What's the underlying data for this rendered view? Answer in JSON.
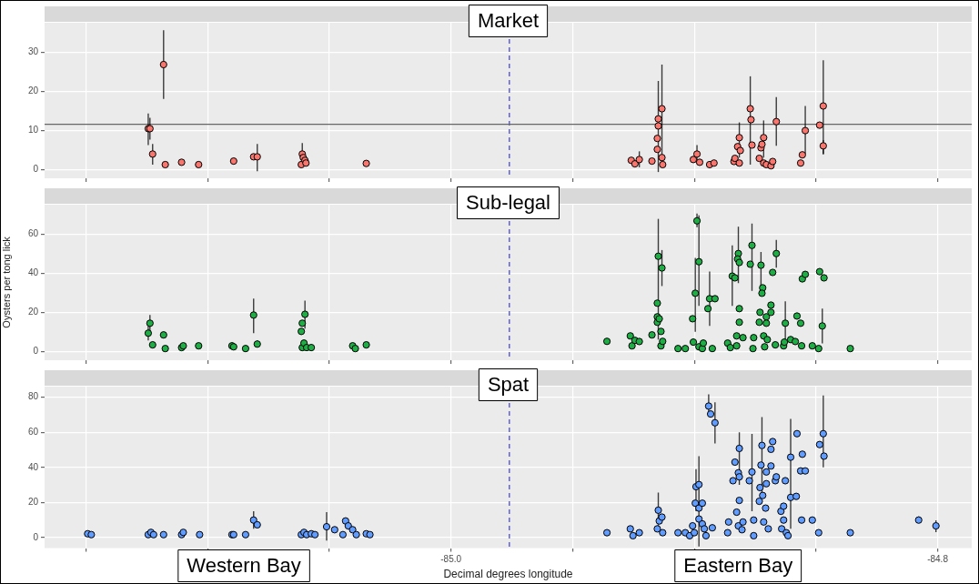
{
  "chart_data": [
    {
      "type": "scatter",
      "title": "Market",
      "color": "#f8766d",
      "marker": "circle",
      "grid": true,
      "legend": false,
      "tick_labels": "y",
      "x": [
        -85.1244,
        -85.1237,
        -85.1226,
        -85.1181,
        -85.1174,
        -85.1107,
        -85.1037,
        -85.0893,
        -85.0811,
        -85.0796,
        -85.0615,
        -85.0611,
        -85.0607,
        -85.06,
        -85.0596,
        -85.0348,
        -84.9259,
        -84.9244,
        -84.9226,
        -84.9174,
        -84.9152,
        -84.9152,
        -84.9148,
        -84.9148,
        -84.9133,
        -84.9133,
        -84.913,
        -84.9004,
        -84.8989,
        -84.8978,
        -84.8937,
        -84.8919,
        -84.8837,
        -84.8833,
        -84.8822,
        -84.8815,
        -84.8815,
        -84.8811,
        -84.877,
        -84.8767,
        -84.8763,
        -84.8733,
        -84.8726,
        -84.8722,
        -84.8715,
        -84.8715,
        -84.8704,
        -84.8685,
        -84.8678,
        -84.8663,
        -84.8563,
        -84.8556,
        -84.8544,
        -84.8485,
        -84.847,
        -84.847
      ],
      "values": [
        10.4,
        10.4,
        3.9,
        26.8,
        1.2,
        1.8,
        1.2,
        2.1,
        3.2,
        3.2,
        1.2,
        3.9,
        3,
        2.3,
        1.6,
        1.5,
        2.3,
        1.4,
        2.5,
        2.1,
        7.9,
        5.1,
        12.9,
        11.1,
        15.5,
        3,
        1.2,
        2.5,
        3.9,
        1.8,
        1.2,
        1.6,
        2,
        2.8,
        5.8,
        8.1,
        1.6,
        4.8,
        15.5,
        12.7,
        6.2,
        2.8,
        5.5,
        6.4,
        8.1,
        1.6,
        1.2,
        0.9,
        2,
        12.2,
        1.6,
        3.7,
        9.9,
        11.3,
        16.2,
        6
      ],
      "errors": [
        [
          6.2,
          14.3
        ],
        [
          7.6,
          13.2
        ],
        [
          1.2,
          6.5
        ],
        [
          18,
          35.6
        ],
        null,
        null,
        null,
        null,
        null,
        [
          -0.5,
          6.5
        ],
        null,
        [
          2,
          6.7
        ],
        null,
        null,
        null,
        null,
        null,
        null,
        [
          0.5,
          4.6
        ],
        null,
        null,
        null,
        [
          -0.7,
          22.6
        ],
        null,
        [
          0.7,
          26.8
        ],
        null,
        null,
        null,
        [
          1.5,
          6.2
        ],
        null,
        null,
        null,
        null,
        null,
        null,
        [
          3,
          12
        ],
        null,
        null,
        [
          1.2,
          23.8
        ],
        null,
        null,
        null,
        null,
        null,
        [
          3,
          12.5
        ],
        null,
        null,
        null,
        null,
        [
          6,
          18.5
        ],
        null,
        null,
        [
          4,
          16.2
        ],
        null,
        [
          3.9,
          27.9
        ],
        [
          3.8,
          7.5
        ]
      ],
      "xlim": [
        -85.167,
        -84.786
      ],
      "xticks": [
        {
          "value": -85.15,
          "label": null
        },
        {
          "value": -85.1,
          "label": null
        },
        {
          "value": -85.05,
          "label": null
        },
        {
          "value": -85,
          "label": null
        },
        {
          "value": -84.95,
          "label": null
        },
        {
          "value": -84.9,
          "label": null
        },
        {
          "value": -84.85,
          "label": null
        },
        {
          "value": -84.8,
          "label": null
        }
      ],
      "ylim": [
        -2.3,
        37.5
      ],
      "yticks": [
        0,
        10,
        20,
        30
      ],
      "ref_lines": [
        {
          "axis": "x",
          "value": -84.976,
          "color": "#4b4bd0",
          "line_style": "dashed"
        },
        {
          "axis": "y",
          "value": 11.5,
          "color": "#666666",
          "line_style": "solid"
        }
      ]
    },
    {
      "type": "scatter",
      "title": "Sub-legal",
      "ylabel": "Oysters per tong lick",
      "color": "#1fae45",
      "marker": "circle",
      "grid": true,
      "legend": false,
      "tick_labels": "y",
      "x": [
        -85.1244,
        -85.1237,
        -85.1226,
        -85.1181,
        -85.1174,
        -85.1107,
        -85.11,
        -85.1037,
        -85.09,
        -85.0893,
        -85.0844,
        -85.0811,
        -85.0796,
        -85.0615,
        -85.0611,
        -85.0611,
        -85.0604,
        -85.06,
        -85.0593,
        -85.0574,
        -85.0404,
        -85.0393,
        -85.0348,
        -84.9359,
        -84.9263,
        -84.9256,
        -84.9244,
        -84.9226,
        -84.9174,
        -84.9152,
        -84.9152,
        -84.9152,
        -84.9148,
        -84.9144,
        -84.9137,
        -84.9137,
        -84.9133,
        -84.913,
        -84.9067,
        -84.9037,
        -84.9007,
        -84.9004,
        -84.8996,
        -84.8989,
        -84.8981,
        -84.8981,
        -84.8967,
        -84.8963,
        -84.8944,
        -84.8937,
        -84.8926,
        -84.8915,
        -84.8863,
        -84.8852,
        -84.8844,
        -84.8833,
        -84.8826,
        -84.8826,
        -84.8819,
        -84.8822,
        -84.8815,
        -84.8815,
        -84.8815,
        -84.88,
        -84.877,
        -84.8763,
        -84.8759,
        -84.8756,
        -84.8726,
        -84.8719,
        -84.8722,
        -84.873,
        -84.8733,
        -84.8711,
        -84.8715,
        -84.87,
        -84.8704,
        -84.8704,
        -84.8685,
        -84.8685,
        -84.8678,
        -84.8667,
        -84.8663,
        -84.8633,
        -84.863,
        -84.8626,
        -84.8604,
        -84.8585,
        -84.8578,
        -84.8563,
        -84.8559,
        -84.8556,
        -84.8544,
        -84.8515,
        -84.8489,
        -84.8485,
        -84.8467,
        -84.8474,
        -84.8359
      ],
      "values": [
        9.3,
        14.4,
        3.3,
        8.4,
        1.4,
        1.9,
        2.8,
        2.8,
        2.8,
        2.3,
        1.4,
        18.6,
        3.7,
        10.2,
        14.4,
        1.9,
        4.2,
        19,
        1.9,
        1.9,
        2.8,
        1.4,
        3.3,
        5.1,
        7.9,
        2.8,
        5.6,
        5,
        8.4,
        24.7,
        17.7,
        14.9,
        48.8,
        16.7,
        10.2,
        2.8,
        42.8,
        5.1,
        1.4,
        1.4,
        16.7,
        4.7,
        29.8,
        67,
        46,
        2.3,
        1.4,
        4.2,
        21.9,
        27,
        1.4,
        27,
        4.2,
        1.9,
        38.6,
        37.7,
        2.8,
        7.9,
        50.2,
        47.4,
        45.6,
        21.9,
        14.9,
        7,
        44.7,
        54.4,
        1.4,
        7,
        44.2,
        32.6,
        29.8,
        20,
        14.9,
        2.3,
        7.9,
        6,
        17.7,
        14.4,
        23.7,
        20,
        40.5,
        3.3,
        50.2,
        2.8,
        4.7,
        14.4,
        6,
        5,
        18.1,
        14.4,
        2.8,
        37.2,
        39.5,
        2.8,
        1.4,
        40.9,
        37.7,
        13,
        1.4
      ],
      "errors": [
        [
          5.6,
          13
        ],
        [
          9,
          18.6
        ],
        null,
        [
          6.8,
          9.8
        ],
        null,
        null,
        null,
        null,
        null,
        null,
        null,
        [
          9.3,
          27
        ],
        [
          1.9,
          5.6
        ],
        null,
        null,
        null,
        null,
        [
          11.6,
          26
        ],
        null,
        null,
        null,
        null,
        null,
        null,
        null,
        null,
        null,
        null,
        null,
        null,
        null,
        null,
        [
          6,
          68
        ],
        null,
        null,
        null,
        [
          33.5,
          52
        ],
        null,
        null,
        null,
        null,
        null,
        [
          10,
          48
        ],
        [
          63.7,
          70.7
        ],
        [
          23.3,
          69.8
        ],
        null,
        null,
        null,
        null,
        [
          13,
          40.9
        ],
        null,
        null,
        null,
        null,
        [
          23.3,
          54.4
        ],
        null,
        null,
        null,
        [
          35,
          64
        ],
        null,
        null,
        null,
        null,
        null,
        null,
        [
          31,
          65.6
        ],
        null,
        null,
        [
          30,
          51
        ],
        null,
        null,
        null,
        null,
        null,
        null,
        null,
        null,
        null,
        null,
        null,
        null,
        null,
        [
          43,
          57.2
        ],
        null,
        null,
        [
          5,
          25.6
        ],
        null,
        null,
        null,
        null,
        null,
        null,
        null,
        null,
        null,
        null,
        null,
        [
          4,
          21.9
        ],
        null
      ],
      "xlim": [
        -85.167,
        -84.786
      ],
      "xticks": [
        {
          "value": -85.15,
          "label": null
        },
        {
          "value": -85.1,
          "label": null
        },
        {
          "value": -85.05,
          "label": null
        },
        {
          "value": -85,
          "label": null
        },
        {
          "value": -84.95,
          "label": null
        },
        {
          "value": -84.9,
          "label": null
        },
        {
          "value": -84.85,
          "label": null
        },
        {
          "value": -84.8,
          "label": null
        }
      ],
      "ylim": [
        -4.6,
        75.3
      ],
      "yticks": [
        0,
        20,
        40,
        60
      ],
      "ref_lines": [
        {
          "axis": "x",
          "value": -84.976,
          "color": "#4b4bd0",
          "line_style": "dashed"
        }
      ]
    },
    {
      "type": "scatter",
      "title": "Spat",
      "xlabel": "Decimal degrees longitude",
      "color": "#619cff",
      "marker": "circle",
      "grid": true,
      "legend": false,
      "annotations": [
        "Western Bay",
        "Eastern Bay"
      ],
      "x": [
        -85.1493,
        -85.1478,
        -85.1244,
        -85.1233,
        -85.1222,
        -85.1181,
        -85.1107,
        -85.11,
        -85.1033,
        -85.09,
        -85.0893,
        -85.0844,
        -85.0811,
        -85.0796,
        -85.0615,
        -85.0604,
        -85.0593,
        -85.0574,
        -85.0559,
        -85.0511,
        -85.0478,
        -85.0444,
        -85.0433,
        -85.0422,
        -85.0404,
        -85.0389,
        -85.0348,
        -85.0333,
        -84.9359,
        -84.9263,
        -84.9252,
        -84.9226,
        -84.9152,
        -84.9148,
        -84.9144,
        -84.9133,
        -84.913,
        -84.9067,
        -84.9037,
        -84.9019,
        -84.9007,
        -84.9,
        -84.8996,
        -84.8993,
        -84.8981,
        -84.8981,
        -84.8981,
        -84.8967,
        -84.8967,
        -84.8959,
        -84.8952,
        -84.8941,
        -84.8933,
        -84.8926,
        -84.8915,
        -84.8863,
        -84.8859,
        -84.8841,
        -84.8833,
        -84.8826,
        -84.8819,
        -84.8819,
        -84.8815,
        -84.8815,
        -84.8815,
        -84.88,
        -84.8804,
        -84.8774,
        -84.8763,
        -84.8756,
        -84.8756,
        -84.873,
        -84.8733,
        -84.8726,
        -84.8722,
        -84.8719,
        -84.8715,
        -84.8707,
        -84.8704,
        -84.8704,
        -84.8696,
        -84.8685,
        -84.8685,
        -84.8678,
        -84.8667,
        -84.8663,
        -84.8644,
        -84.8641,
        -84.8633,
        -84.8633,
        -84.8626,
        -84.8622,
        -84.8615,
        -84.8604,
        -84.8604,
        -84.8581,
        -84.8578,
        -84.8563,
        -84.8559,
        -84.8556,
        -84.8544,
        -84.8515,
        -84.8489,
        -84.8485,
        -84.847,
        -84.8467,
        -84.8359,
        -84.8078,
        -84.8007
      ],
      "values": [
        2.2,
        1.7,
        1.7,
        3,
        1.7,
        1.7,
        1.7,
        3,
        1.7,
        1.7,
        1.7,
        1.7,
        10,
        7.3,
        1.7,
        3,
        1.7,
        2.2,
        1.7,
        6.2,
        4.5,
        1.7,
        9.5,
        6.7,
        4.5,
        1.7,
        2.2,
        1.7,
        2.8,
        5,
        1.1,
        2.8,
        5,
        15.6,
        9.5,
        11.7,
        2.8,
        2.8,
        2.8,
        1.1,
        6.7,
        2.8,
        19.6,
        29,
        30.2,
        16.8,
        10.6,
        19.6,
        7.8,
        5,
        1.1,
        74.9,
        70.4,
        5.6,
        65.4,
        2.8,
        8.9,
        32.4,
        43,
        14.5,
        36.9,
        6.7,
        50.8,
        34.6,
        21.2,
        8.9,
        4.5,
        32.4,
        37.4,
        10,
        1.1,
        28.5,
        20.7,
        41.3,
        52.5,
        24,
        8.9,
        16.8,
        30.7,
        37.4,
        5,
        50.3,
        40.8,
        54.7,
        32.4,
        34.6,
        15,
        5,
        17.9,
        10,
        32.4,
        2.8,
        1.1,
        45.8,
        22.9,
        23.5,
        59.2,
        38,
        10,
        47.5,
        38,
        10,
        2.8,
        53,
        59.2,
        46.4,
        2.8,
        10,
        6.7
      ],
      "errors": [
        null,
        null,
        null,
        null,
        null,
        null,
        null,
        null,
        null,
        null,
        null,
        null,
        [
          5,
          15
        ],
        null,
        null,
        null,
        null,
        null,
        null,
        [
          -1.7,
          14.5
        ],
        null,
        null,
        null,
        null,
        null,
        null,
        null,
        null,
        null,
        null,
        null,
        null,
        null,
        [
          5,
          25.7
        ],
        null,
        null,
        null,
        null,
        null,
        null,
        null,
        null,
        null,
        [
          15,
          39
        ],
        [
          -5,
          46.4
        ],
        null,
        null,
        null,
        null,
        null,
        null,
        [
          70,
          81.6
        ],
        null,
        null,
        [
          53.6,
          77
        ],
        null,
        null,
        null,
        null,
        null,
        null,
        null,
        [
          30,
          60
        ],
        null,
        null,
        null,
        null,
        null,
        [
          15,
          59
        ],
        null,
        null,
        null,
        null,
        null,
        [
          25,
          68.7
        ],
        null,
        null,
        null,
        null,
        null,
        null,
        null,
        null,
        null,
        null,
        null,
        null,
        null,
        null,
        null,
        null,
        null,
        null,
        [
          5,
          67.6
        ],
        null,
        null,
        null,
        null,
        null,
        null,
        null,
        null,
        null,
        null,
        [
          40,
          81
        ],
        null,
        null,
        [
          8.4,
          12
        ],
        [
          3.1,
          9.8
        ]
      ],
      "xlim": [
        -85.167,
        -84.786
      ],
      "xticks": [
        {
          "value": -85.15,
          "label": null
        },
        {
          "value": -85.1,
          "label": null
        },
        {
          "value": -85.05,
          "label": null
        },
        {
          "value": -85,
          "label": "-85.0"
        },
        {
          "value": -84.95,
          "label": null
        },
        {
          "value": -84.9,
          "label": null
        },
        {
          "value": -84.85,
          "label": null
        },
        -84.8
      ],
      "ylim": [
        -6,
        86
      ],
      "yticks": [
        0,
        20,
        40,
        60,
        80
      ],
      "ref_lines": [
        {
          "axis": "x",
          "value": -84.976,
          "color": "#4b4bd0",
          "line_style": "dashed"
        }
      ]
    }
  ]
}
